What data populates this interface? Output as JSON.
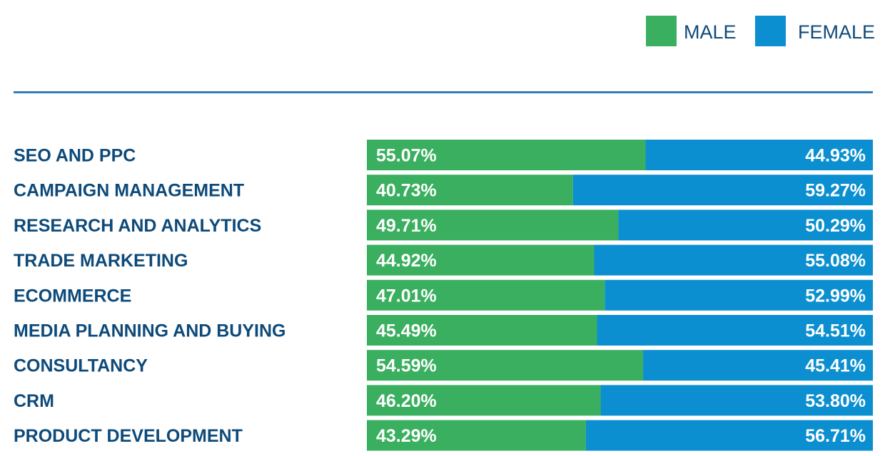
{
  "colors": {
    "male": "#3aaf5f",
    "female": "#0b8fd0",
    "text": "#0d4a7a",
    "rule": "#2f7fb8"
  },
  "chart_data": {
    "type": "bar",
    "orientation": "horizontal",
    "stacked": true,
    "categories": [
      "SEO AND PPC",
      "CAMPAIGN MANAGEMENT",
      "RESEARCH AND ANALYTICS",
      "TRADE MARKETING",
      "ECOMMERCE",
      "MEDIA PLANNING AND BUYING",
      "CONSULTANCY",
      "CRM",
      "PRODUCT DEVELOPMENT"
    ],
    "series": [
      {
        "name": "MALE",
        "values": [
          55.07,
          40.73,
          49.71,
          44.92,
          47.01,
          45.49,
          54.59,
          46.2,
          43.29
        ],
        "labels": [
          "55.07%",
          "40.73%",
          "49.71%",
          "44.92%",
          "47.01%",
          "45.49%",
          "54.59%",
          "46.20%",
          "43.29%"
        ]
      },
      {
        "name": "FEMALE",
        "values": [
          44.93,
          59.27,
          50.29,
          55.08,
          52.99,
          54.51,
          45.41,
          53.8,
          56.71
        ],
        "labels": [
          "44.93%",
          "59.27%",
          "50.29%",
          "55.08%",
          "52.99%",
          "54.51%",
          "45.41%",
          "53.80%",
          "56.71%"
        ]
      }
    ],
    "xlim": [
      0,
      100
    ],
    "grid": false,
    "legend_position": "top-right"
  }
}
